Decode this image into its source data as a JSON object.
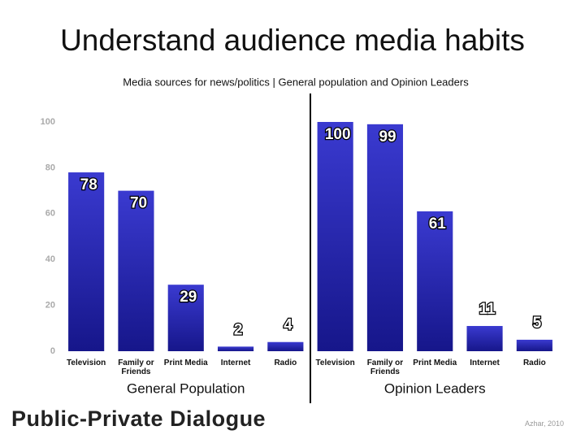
{
  "chart_data": {
    "type": "bar",
    "title": "Understand audience media habits",
    "subtitle": "Media sources for news/politics | General population and Opinion Leaders",
    "categories": [
      "Television",
      "Family or Friends",
      "Print Media",
      "Internet",
      "Radio",
      "Television",
      "Family or Friends",
      "Print Media",
      "Internet",
      "Radio"
    ],
    "values": [
      78,
      70,
      29,
      2,
      4,
      100,
      99,
      61,
      11,
      5
    ],
    "groups": [
      "General Population",
      "Opinion Leaders"
    ],
    "color": "#16168a",
    "ylim": [
      0,
      100
    ],
    "yticks": [
      0,
      20,
      40,
      60,
      80,
      100
    ],
    "grid": false
  },
  "footer": {
    "logo": "Public-Private Dialogue",
    "credit": "Azhar, 2010"
  }
}
